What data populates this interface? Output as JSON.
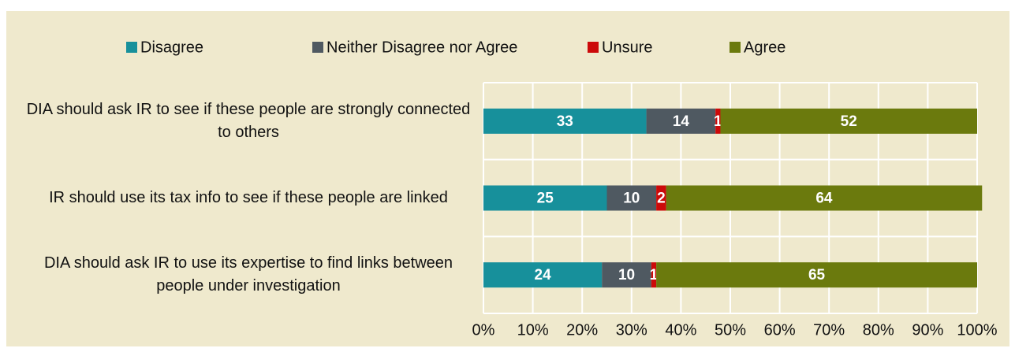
{
  "chart_data": {
    "type": "stacked-bar-horizontal",
    "categories": [
      "DIA should ask IR to see if these people are strongly connected to others",
      "IR should use its tax info to see if these people are linked",
      "DIA should ask IR to use its expertise to find links between people under investigation"
    ],
    "series": [
      {
        "name": "Disagree",
        "color": "#17909b",
        "values": [
          33,
          25,
          24
        ]
      },
      {
        "name": "Neither Disagree nor Agree",
        "color": "#4f5961",
        "values": [
          14,
          10,
          10
        ]
      },
      {
        "name": "Unsure",
        "color": "#cc0a0a",
        "values": [
          1,
          2,
          1
        ]
      },
      {
        "name": "Agree",
        "color": "#6b7a0d",
        "values": [
          52,
          64,
          65
        ]
      }
    ],
    "xlim": [
      0,
      100
    ],
    "xticks": [
      {
        "value": 0,
        "label": "0%"
      },
      {
        "value": 10,
        "label": "10%"
      },
      {
        "value": 20,
        "label": "20%"
      },
      {
        "value": 30,
        "label": "30%"
      },
      {
        "value": 40,
        "label": "40%"
      },
      {
        "value": 50,
        "label": "50%"
      },
      {
        "value": 60,
        "label": "60%"
      },
      {
        "value": 70,
        "label": "70%"
      },
      {
        "value": 80,
        "label": "80%"
      },
      {
        "value": 90,
        "label": "90%"
      },
      {
        "value": 100,
        "label": "100%"
      }
    ],
    "grid": true,
    "legend": "top"
  }
}
